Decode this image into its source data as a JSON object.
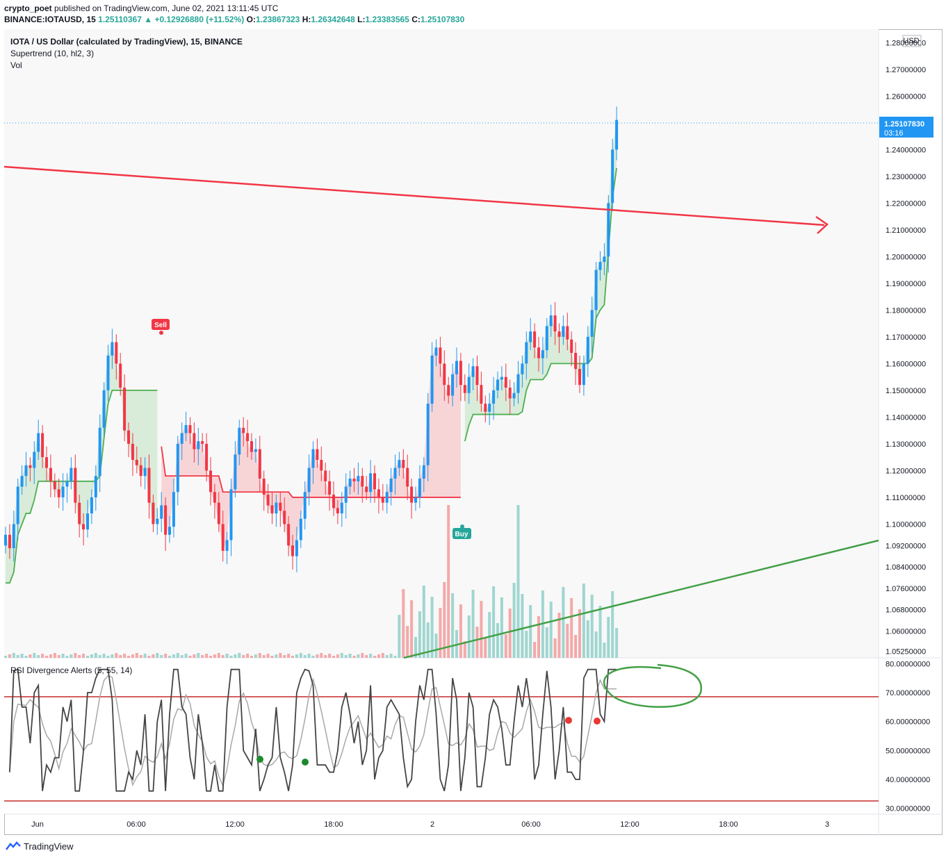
{
  "header": {
    "publisher": "crypto_poet",
    "published_text": "published on TradingView.com, June 02, 2021 13:11:45 UTC",
    "symbol": "BINANCE:IOTAUSD, 15",
    "last": "1.25110367",
    "change": "+0.12926880 (+11.52%)",
    "o_label": "O:",
    "o": "1.23867323",
    "h_label": "H:",
    "h": "1.26342648",
    "l_label": "L:",
    "l": "1.23383565",
    "c_label": "C:",
    "c": "1.25107830"
  },
  "legend": {
    "title": "IOTA / US Dollar (calculated by TradingView), 15, BINANCE",
    "indicator1": "Supertrend (10, hl2, 3)",
    "indicator2": "Vol",
    "rsi": "RSI Divergence Alerts (5, 55, 14)"
  },
  "price_axis": {
    "currency": "USD",
    "ticks": [
      "1.28000000",
      "1.27000000",
      "1.26000000",
      "1.24000000",
      "1.23000000",
      "1.22000000",
      "1.21000000",
      "1.20000000",
      "1.19000000",
      "1.18000000",
      "1.17000000",
      "1.16000000",
      "1.15000000",
      "1.14000000",
      "1.13000000",
      "1.12000000",
      "1.11000000",
      "1.10000000",
      "1.09200000",
      "1.08400000",
      "1.07600000",
      "1.06800000",
      "1.06000000",
      "1.05250000"
    ],
    "current_price": "1.25107830",
    "countdown": "03:16"
  },
  "rsi_axis": {
    "ticks": [
      "80.00000000",
      "70.00000000",
      "60.00000000",
      "50.00000000",
      "40.00000000",
      "30.00000000"
    ]
  },
  "time_axis": {
    "ticks": [
      "Jun",
      "06:00",
      "12:00",
      "18:00",
      "2",
      "06:00",
      "12:00",
      "18:00",
      "3"
    ]
  },
  "signals": {
    "sell": "Sell",
    "buy": "Buy"
  },
  "footer": {
    "brand": "TradingView"
  },
  "colors": {
    "up": "#26a69a",
    "down": "#ef5350",
    "candle_up": "#2196f3",
    "candle_down": "#f23645",
    "trendline_red": "#f23645",
    "trendline_green": "#4caf50",
    "supertrend_up": "#4caf50",
    "supertrend_down": "#f23645"
  },
  "chart_data": {
    "type": "candlestick",
    "series_main": {
      "closes": [
        1.096,
        1.091,
        1.1,
        1.114,
        1.118,
        1.122,
        1.121,
        1.127,
        1.134,
        1.125,
        1.121,
        1.116,
        1.113,
        1.11,
        1.114,
        1.116,
        1.121,
        1.108,
        1.1,
        1.098,
        1.104,
        1.11,
        1.118,
        1.136,
        1.15,
        1.163,
        1.168,
        1.16,
        1.151,
        1.135,
        1.13,
        1.124,
        1.122,
        1.118,
        1.121,
        1.108,
        1.1,
        1.102,
        1.107,
        1.096,
        1.099,
        1.112,
        1.13,
        1.134,
        1.137,
        1.134,
        1.128,
        1.131,
        1.13,
        1.12,
        1.112,
        1.108,
        1.1,
        1.09,
        1.094,
        1.113,
        1.126,
        1.136,
        1.134,
        1.131,
        1.127,
        1.128,
        1.117,
        1.111,
        1.107,
        1.104,
        1.108,
        1.105,
        1.1,
        1.092,
        1.088,
        1.094,
        1.102,
        1.112,
        1.121,
        1.128,
        1.124,
        1.12,
        1.116,
        1.111,
        1.106,
        1.104,
        1.108,
        1.114,
        1.117,
        1.116,
        1.118,
        1.114,
        1.112,
        1.119,
        1.113,
        1.11,
        1.108,
        1.112,
        1.117,
        1.121,
        1.124,
        1.121,
        1.114,
        1.108,
        1.11,
        1.117,
        1.122,
        1.145,
        1.163,
        1.166,
        1.16,
        1.152,
        1.148,
        1.156,
        1.161,
        1.152,
        1.149,
        1.155,
        1.159,
        1.152,
        1.145,
        1.142,
        1.145,
        1.15,
        1.154,
        1.155,
        1.151,
        1.147,
        1.149,
        1.156,
        1.16,
        1.168,
        1.172,
        1.166,
        1.162,
        1.165,
        1.174,
        1.178,
        1.172,
        1.17,
        1.174,
        1.169,
        1.164,
        1.158,
        1.152,
        1.16,
        1.17,
        1.18,
        1.195,
        1.198,
        1.2,
        1.22,
        1.24,
        1.2510783
      ],
      "ylim": [
        1.05,
        1.285
      ]
    },
    "supertrend": {
      "sell_label": "Sell",
      "buy_label": "Buy"
    },
    "trendlines": {
      "red_descending": true,
      "green_ascending": true
    },
    "rsi": {
      "ylim": [
        28,
        82
      ],
      "levels": [
        70,
        30
      ]
    }
  }
}
